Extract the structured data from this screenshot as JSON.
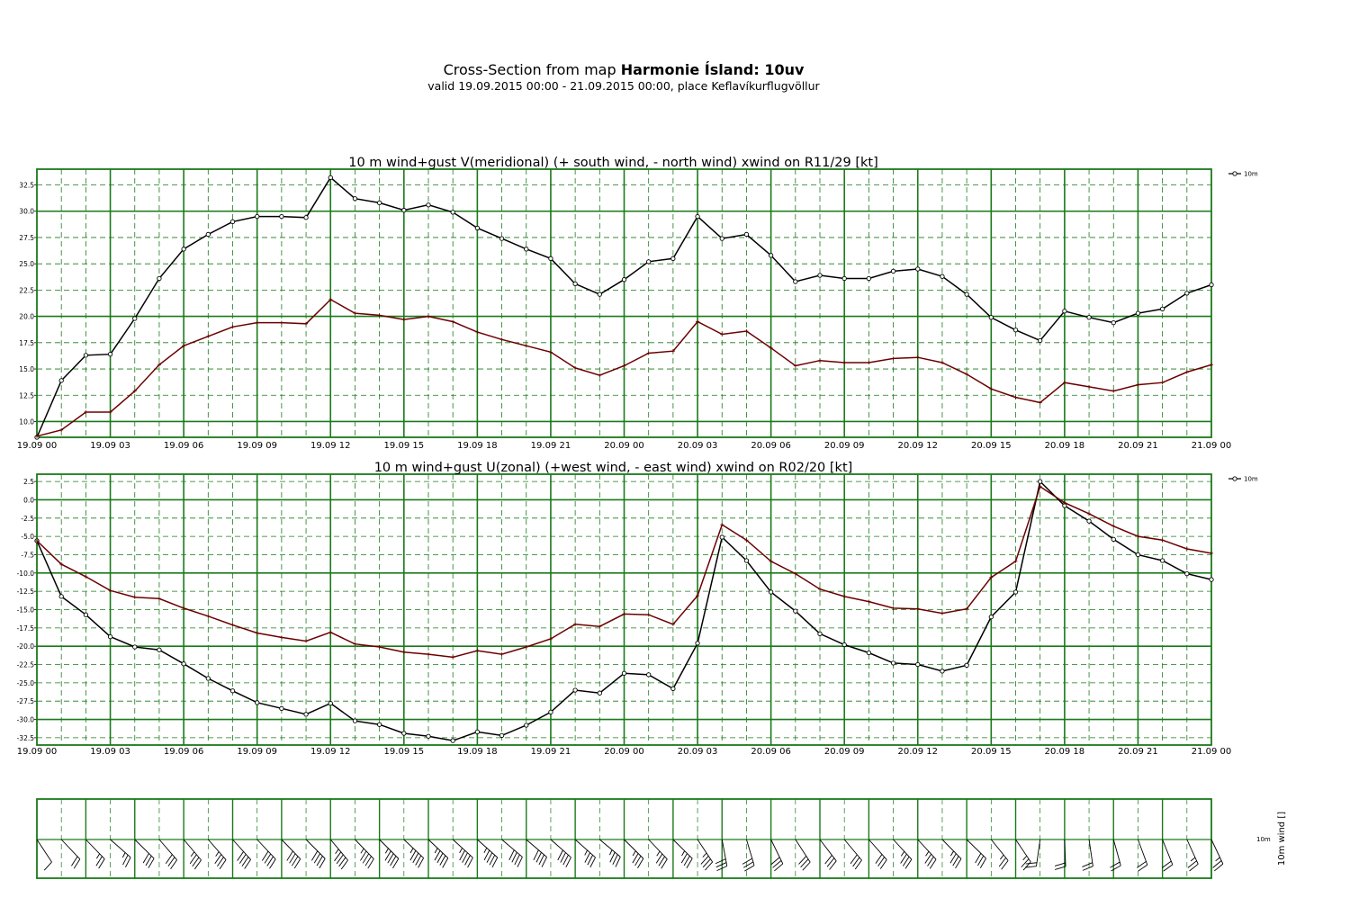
{
  "header": {
    "title_prefix": "Cross-Section from map",
    "title_bold": "Harmonie Ísland: 10uv",
    "subtitle": "valid 19.09.2015 00:00 - 21.09.2015 00:00, place Keflavíkurflugvöllur"
  },
  "time_ticks": [
    "19.09 00",
    "19.09 03",
    "19.09 06",
    "19.09 09",
    "19.09 12",
    "19.09 15",
    "19.09 18",
    "19.09 21",
    "20.09 00",
    "20.09 03",
    "20.09 06",
    "20.09 09",
    "20.09 12",
    "20.09 15",
    "20.09 18",
    "20.09 21",
    "21.09 00"
  ],
  "colors": {
    "grid": "#1a7a1a",
    "wind": "#000000",
    "gust": "#6b0000"
  },
  "chart_data": [
    {
      "type": "line",
      "title": "10 m wind+gust V(meridional) (+ south wind, - north wind) xwind on R11/29 [kt]",
      "x_hours": [
        0,
        1,
        2,
        3,
        4,
        5,
        6,
        7,
        8,
        9,
        10,
        11,
        12,
        13,
        14,
        15,
        16,
        17,
        18,
        19,
        20,
        21,
        22,
        23,
        24,
        25,
        26,
        27,
        28,
        29,
        30,
        31,
        32,
        33,
        34,
        35,
        36,
        37,
        38,
        39,
        40,
        41,
        42,
        43,
        44,
        45,
        46,
        47,
        48
      ],
      "ylim": [
        8.5,
        34
      ],
      "yticks": [
        "32.5",
        "30.0",
        "27.5",
        "25.0",
        "22.5",
        "20.0",
        "17.5",
        "15.0",
        "12.5",
        "10.0"
      ],
      "ytick_values": [
        32.5,
        30,
        27.5,
        25,
        22.5,
        20,
        17.5,
        15,
        12.5,
        10
      ],
      "grid": true,
      "legend": [
        "10m"
      ],
      "legend_placement": "outside-top-right",
      "series": [
        {
          "name": "10m",
          "role": "wind",
          "marker": "circle",
          "values": [
            8.5,
            13.9,
            16.3,
            16.4,
            19.8,
            23.6,
            26.4,
            27.8,
            29.0,
            29.5,
            29.5,
            29.4,
            33.2,
            31.2,
            30.8,
            30.1,
            30.6,
            29.9,
            28.4,
            27.4,
            26.4,
            25.5,
            23.1,
            22.1,
            23.5,
            25.2,
            25.5,
            29.5,
            27.4,
            27.8,
            25.8,
            23.3,
            23.9,
            23.6,
            23.6,
            24.3,
            24.5,
            23.8,
            22.1,
            19.9,
            18.7,
            17.7,
            20.5,
            19.9,
            19.4,
            20.3,
            20.7,
            22.2,
            23.0
          ]
        },
        {
          "name": "",
          "role": "gust",
          "marker": "plus",
          "values": [
            8.6,
            9.2,
            10.9,
            10.9,
            12.9,
            15.4,
            17.2,
            18.1,
            19.0,
            19.4,
            19.4,
            19.3,
            21.6,
            20.3,
            20.1,
            19.7,
            20.0,
            19.5,
            18.5,
            17.8,
            17.2,
            16.6,
            15.1,
            14.4,
            15.3,
            16.5,
            16.7,
            19.5,
            18.3,
            18.6,
            17.0,
            15.3,
            15.8,
            15.6,
            15.6,
            16.0,
            16.1,
            15.6,
            14.5,
            13.1,
            12.3,
            11.8,
            13.7,
            13.3,
            12.9,
            13.5,
            13.7,
            14.7,
            15.4
          ]
        }
      ]
    },
    {
      "type": "line",
      "title": "10 m wind+gust U(zonal) (+west wind, - east wind) xwind on R02/20 [kt]",
      "x_hours": [
        0,
        1,
        2,
        3,
        4,
        5,
        6,
        7,
        8,
        9,
        10,
        11,
        12,
        13,
        14,
        15,
        16,
        17,
        18,
        19,
        20,
        21,
        22,
        23,
        24,
        25,
        26,
        27,
        28,
        29,
        30,
        31,
        32,
        33,
        34,
        35,
        36,
        37,
        38,
        39,
        40,
        41,
        42,
        43,
        44,
        45,
        46,
        47,
        48
      ],
      "ylim": [
        -33.5,
        3.5
      ],
      "yticks": [
        "2.5",
        "0.0",
        "-2.5",
        "-5.0",
        "-7.5",
        "-10.0",
        "-12.5",
        "-15.0",
        "-17.5",
        "-20.0",
        "-22.5",
        "-25.0",
        "-27.5",
        "-30.0",
        "-32.5"
      ],
      "ytick_values": [
        2.5,
        0,
        -2.5,
        -5,
        -7.5,
        -10,
        -12.5,
        -15,
        -17.5,
        -20,
        -22.5,
        -25,
        -27.5,
        -30,
        -32.5
      ],
      "grid": true,
      "legend": [
        "10m"
      ],
      "legend_placement": "outside-top-right",
      "series": [
        {
          "name": "10m",
          "role": "wind",
          "marker": "circle",
          "values": [
            -5.6,
            -13.2,
            -15.7,
            -18.7,
            -20.1,
            -20.5,
            -22.4,
            -24.4,
            -26.1,
            -27.7,
            -28.5,
            -29.3,
            -27.8,
            -30.2,
            -30.7,
            -31.9,
            -32.3,
            -32.9,
            -31.7,
            -32.2,
            -30.8,
            -29.0,
            -26.0,
            -26.4,
            -23.7,
            -23.9,
            -25.8,
            -19.6,
            -5.1,
            -8.3,
            -12.6,
            -15.2,
            -18.3,
            -19.8,
            -20.9,
            -22.3,
            -22.5,
            -23.4,
            -22.6,
            -16.0,
            -12.6,
            2.5,
            -0.8,
            -2.9,
            -5.4,
            -7.5,
            -8.3,
            -10.1,
            -10.9
          ]
        },
        {
          "name": "",
          "role": "gust",
          "marker": "plus",
          "values": [
            -5.6,
            -8.8,
            -10.5,
            -12.4,
            -13.3,
            -13.5,
            -14.8,
            -15.9,
            -17.1,
            -18.2,
            -18.8,
            -19.3,
            -18.1,
            -19.7,
            -20.1,
            -20.8,
            -21.1,
            -21.5,
            -20.6,
            -21.1,
            -20.1,
            -19.0,
            -17.0,
            -17.3,
            -15.6,
            -15.7,
            -17.0,
            -13.1,
            -3.4,
            -5.5,
            -8.4,
            -10.1,
            -12.2,
            -13.2,
            -13.9,
            -14.8,
            -14.9,
            -15.5,
            -14.9,
            -10.6,
            -8.4,
            1.8,
            -0.4,
            -1.9,
            -3.6,
            -5.0,
            -5.5,
            -6.7,
            -7.3
          ]
        }
      ]
    },
    {
      "type": "barbs",
      "title": "",
      "ylabel": "10m wind []",
      "row_label": "10m",
      "grid": true
    }
  ]
}
